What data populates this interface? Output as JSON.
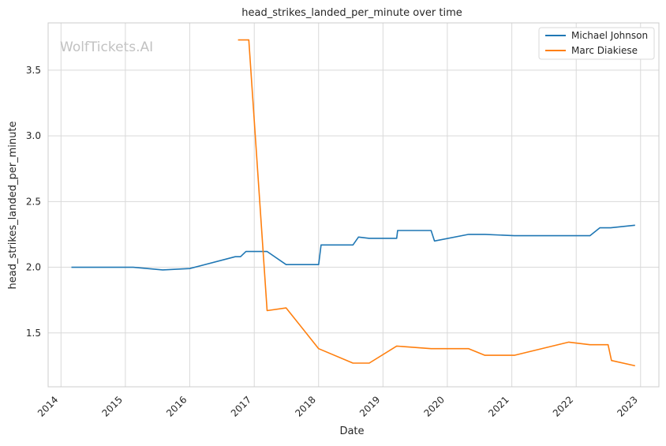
{
  "chart_data": {
    "type": "line",
    "title": "head_strikes_landed_per_minute over time",
    "xlabel": "Date",
    "ylabel": "head_strikes_landed_per_minute",
    "watermark": "WolfTickets.AI",
    "xlim": [
      "2013-10-20",
      "2023-04-15"
    ],
    "ylim": [
      1.09,
      3.86
    ],
    "x_ticks": [
      "2014",
      "2015",
      "2016",
      "2017",
      "2018",
      "2019",
      "2020",
      "2021",
      "2022",
      "2023"
    ],
    "y_ticks": [
      1.5,
      2.0,
      2.5,
      3.0,
      3.5
    ],
    "y_tick_labels": [
      "1.5",
      "2.0",
      "2.5",
      "3.0",
      "3.5"
    ],
    "grid": true,
    "legend_position": "top-right",
    "series": [
      {
        "name": "Michael Johnson",
        "color": "#1f77b4",
        "points": [
          [
            "2014-03-01",
            2.0
          ],
          [
            "2015-02-15",
            2.0
          ],
          [
            "2015-08-01",
            1.98
          ],
          [
            "2016-01-01",
            1.99
          ],
          [
            "2016-09-15",
            2.08
          ],
          [
            "2016-10-15",
            2.08
          ],
          [
            "2016-11-15",
            2.12
          ],
          [
            "2017-03-15",
            2.12
          ],
          [
            "2017-07-01",
            2.02
          ],
          [
            "2018-01-01",
            2.02
          ],
          [
            "2018-01-15",
            2.17
          ],
          [
            "2018-07-15",
            2.17
          ],
          [
            "2018-08-15",
            2.23
          ],
          [
            "2018-10-15",
            2.22
          ],
          [
            "2019-03-20",
            2.22
          ],
          [
            "2019-03-25",
            2.28
          ],
          [
            "2019-10-01",
            2.28
          ],
          [
            "2019-10-20",
            2.2
          ],
          [
            "2020-05-01",
            2.25
          ],
          [
            "2020-08-01",
            2.25
          ],
          [
            "2021-01-15",
            2.24
          ],
          [
            "2022-03-20",
            2.24
          ],
          [
            "2022-05-15",
            2.3
          ],
          [
            "2022-07-15",
            2.3
          ],
          [
            "2022-12-01",
            2.32
          ]
        ]
      },
      {
        "name": "Marc Diakiese",
        "color": "#ff7f0e",
        "points": [
          [
            "2016-10-01",
            3.73
          ],
          [
            "2016-12-01",
            3.73
          ],
          [
            "2017-03-15",
            1.67
          ],
          [
            "2017-07-01",
            1.69
          ],
          [
            "2018-01-01",
            1.38
          ],
          [
            "2018-07-15",
            1.27
          ],
          [
            "2018-10-15",
            1.27
          ],
          [
            "2019-03-20",
            1.4
          ],
          [
            "2019-10-01",
            1.38
          ],
          [
            "2020-05-01",
            1.38
          ],
          [
            "2020-08-01",
            1.33
          ],
          [
            "2021-01-15",
            1.33
          ],
          [
            "2021-11-20",
            1.43
          ],
          [
            "2022-03-20",
            1.41
          ],
          [
            "2022-07-01",
            1.41
          ],
          [
            "2022-07-20",
            1.29
          ],
          [
            "2022-12-01",
            1.25
          ]
        ]
      }
    ]
  }
}
